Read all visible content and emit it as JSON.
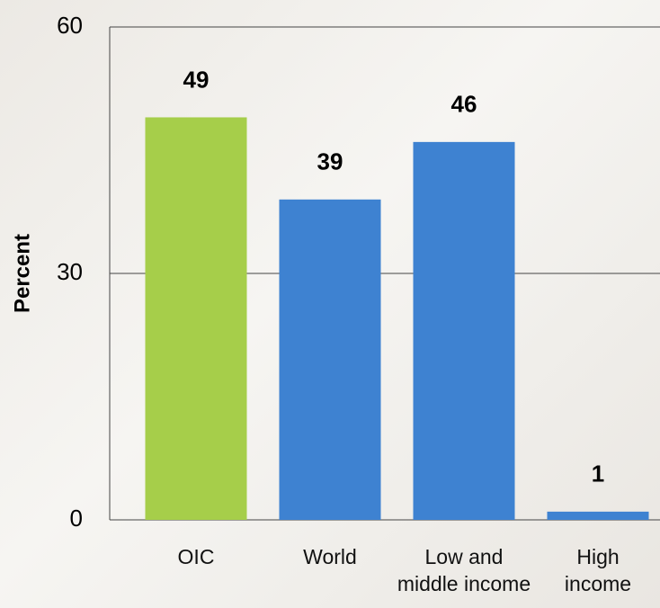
{
  "chart_data": {
    "type": "bar",
    "y_label": "Percent",
    "categories": [
      "OIC",
      "World",
      "Low and\nmiddle income",
      "High\nincome"
    ],
    "values": [
      49,
      39,
      46,
      1
    ],
    "colors": [
      "#a6ce4a",
      "#3e82d1",
      "#3e82d1",
      "#3e82d1"
    ],
    "ylim": [
      0,
      60
    ],
    "yticks": [
      0,
      30,
      60
    ],
    "grid": true
  }
}
